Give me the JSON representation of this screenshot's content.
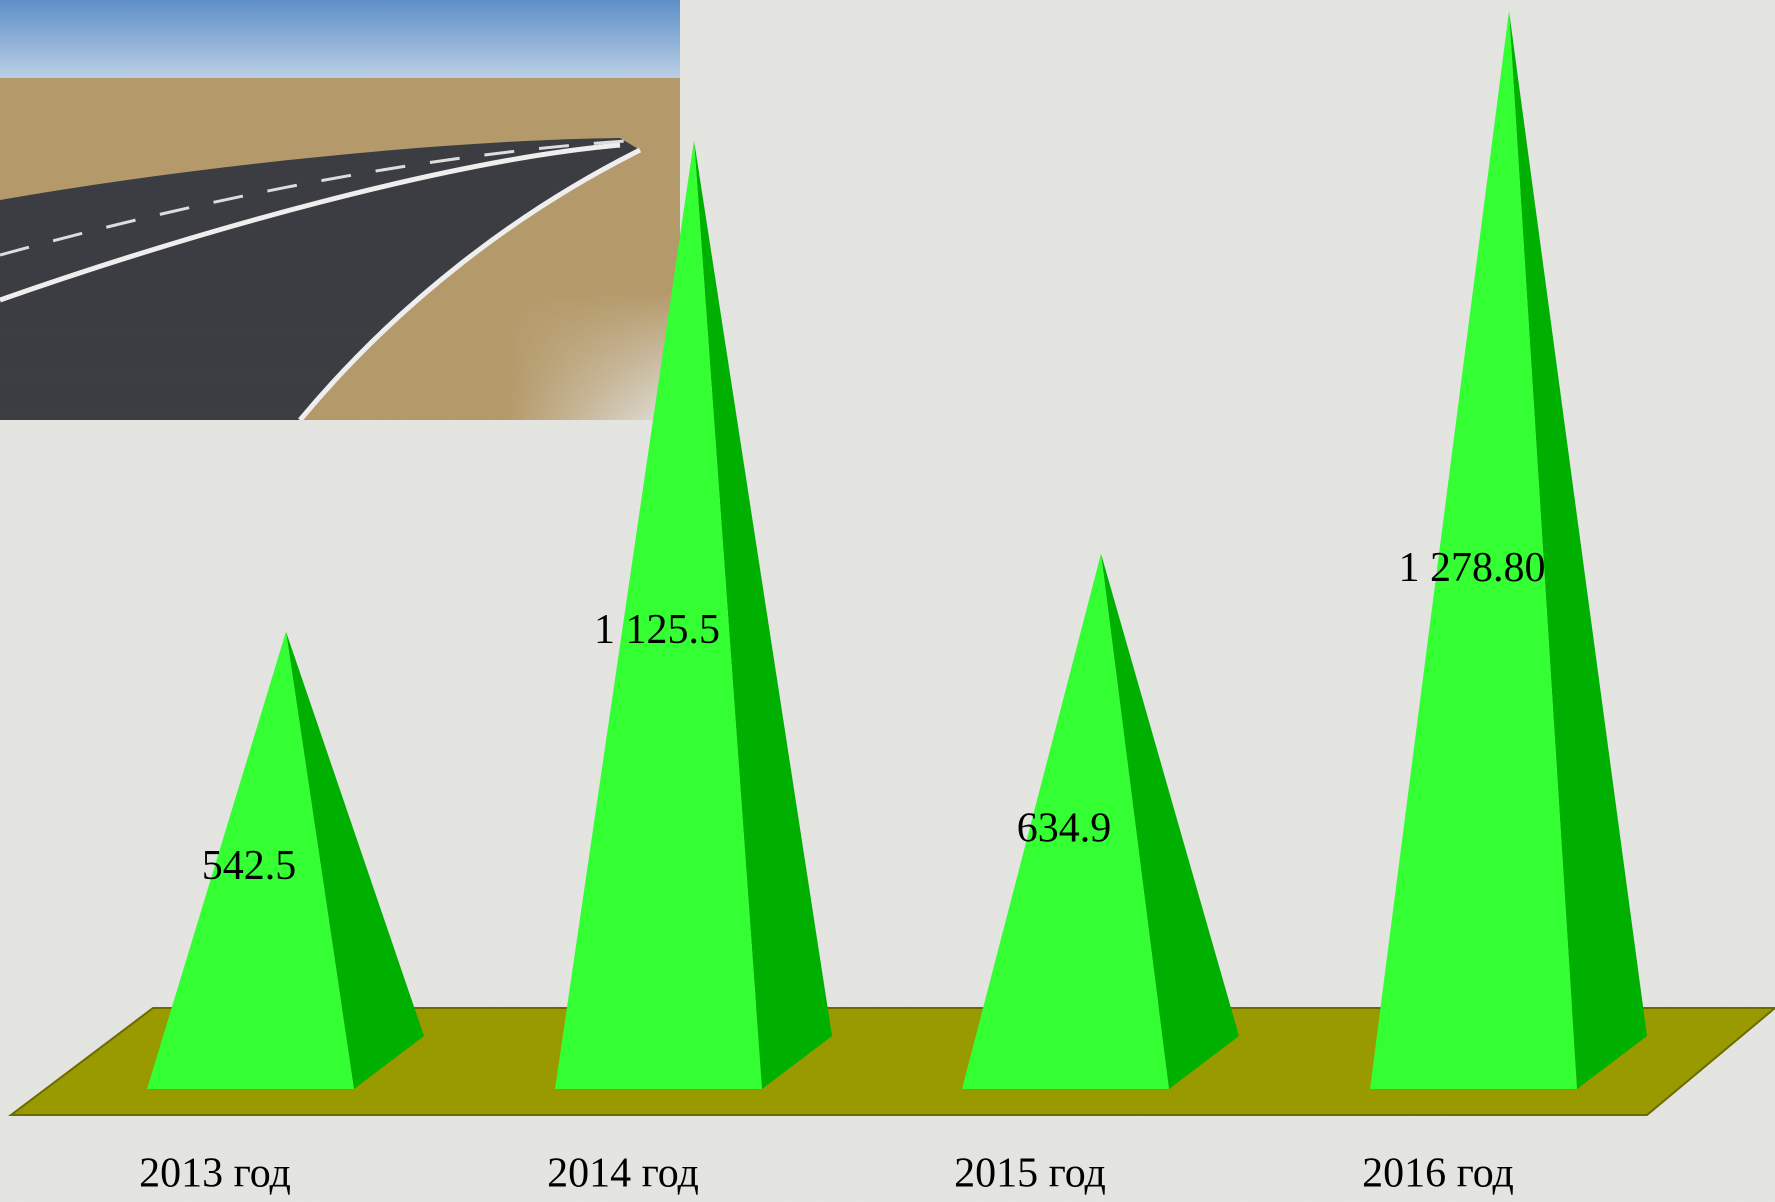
{
  "chart_data": {
    "type": "pyramid",
    "categories": [
      "2013 год",
      "2014 год",
      "2015 год",
      "2016 год"
    ],
    "values": [
      542.5,
      1125.5,
      634.9,
      1278.8
    ],
    "value_labels": [
      "542.5",
      "1 125.5",
      "634.9",
      "1 278.80"
    ],
    "color": "#33ff33"
  }
}
